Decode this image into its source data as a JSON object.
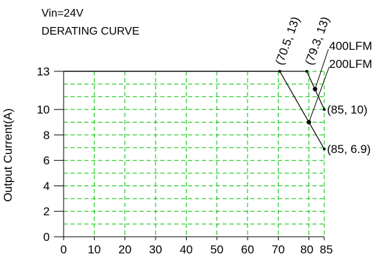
{
  "header": {
    "line1": "Vin=24V",
    "line2": "DERATING CURVE"
  },
  "chart_data": {
    "type": "line",
    "title": "DERATING CURVE",
    "subtitle": "Vin=24V",
    "xlabel": "",
    "ylabel": "Output Current(A)",
    "xlim": [
      0,
      85
    ],
    "ylim": [
      0,
      13
    ],
    "x_ticks": [
      0,
      10,
      20,
      30,
      40,
      50,
      60,
      70,
      80,
      85
    ],
    "x_tick_labels": [
      "0",
      "10",
      "20",
      "30",
      "40",
      "50",
      "60",
      "70",
      "80",
      "85"
    ],
    "y_ticks": [
      0,
      2,
      4,
      6,
      8,
      10,
      13
    ],
    "y_tick_labels": [
      "0",
      "2",
      "4",
      "6",
      "8",
      "10",
      "13"
    ],
    "grid": true,
    "grid_color": "#00c000",
    "series": [
      {
        "name": "400LFM",
        "points": [
          {
            "x": 0,
            "y": 13
          },
          {
            "x": 79.3,
            "y": 13
          },
          {
            "x": 85,
            "y": 10
          }
        ],
        "marker": {
          "x": 82,
          "y": 11.6
        }
      },
      {
        "name": "200LFM",
        "points": [
          {
            "x": 0,
            "y": 13
          },
          {
            "x": 70.5,
            "y": 13
          },
          {
            "x": 85,
            "y": 6.9
          }
        ],
        "marker": {
          "x": 80,
          "y": 9
        }
      }
    ],
    "annotations": [
      {
        "text": "(70.5,  13)",
        "x": 70.5,
        "y": 13,
        "rotated": true
      },
      {
        "text": "(79.3,  13)",
        "x": 79.3,
        "y": 13,
        "rotated": true
      },
      {
        "text": "(85,  10)",
        "x": 85,
        "y": 10,
        "rotated": false
      },
      {
        "text": "(85,  6.9)",
        "x": 85,
        "y": 6.9,
        "rotated": false
      }
    ]
  }
}
